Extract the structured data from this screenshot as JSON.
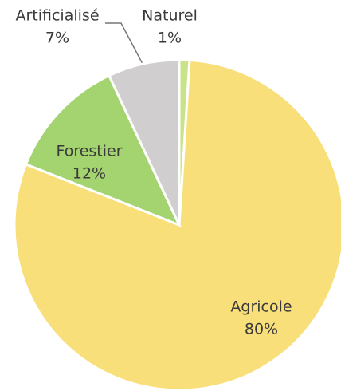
{
  "chart_data": {
    "type": "pie",
    "categories": [
      "Naturel",
      "Agricole",
      "Forestier",
      "Artificialisé"
    ],
    "values": [
      1,
      80,
      12,
      7
    ],
    "value_labels": [
      "1%",
      "80%",
      "12%",
      "7%"
    ],
    "colors": [
      "#c8e38a",
      "#f9df7a",
      "#a4d46f",
      "#d0cecf"
    ]
  }
}
